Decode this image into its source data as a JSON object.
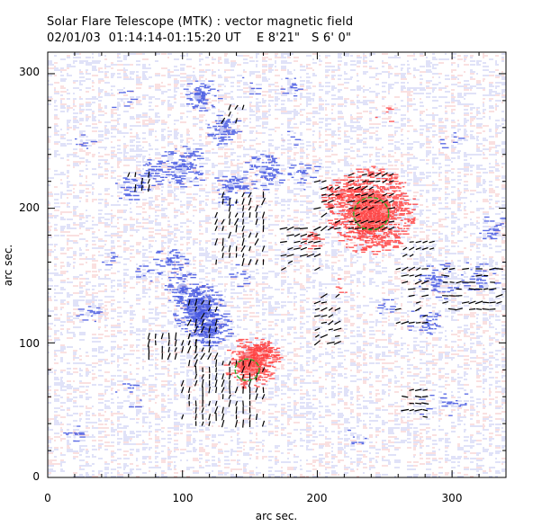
{
  "header": {
    "title": "Solar Flare Telescope (MTK) : vector magnetic field",
    "subtitle": "02/01/03  01:14:14-01:15:20 UT    E 8'21\"   S 6' 0\""
  },
  "axes": {
    "xlabel": "arc sec.",
    "ylabel": "arc sec.",
    "xlim": [
      0,
      340
    ],
    "ylim": [
      0,
      316
    ],
    "xticks": [
      "0",
      "100",
      "200",
      "300"
    ],
    "yticks": [
      "0",
      "100",
      "200",
      "300"
    ],
    "xtick_values": [
      0,
      100,
      200,
      300
    ],
    "ytick_values": [
      0,
      100,
      200,
      300
    ]
  },
  "magnetogram": {
    "positive_color": "#ff3b3b",
    "negative_color": "#3f52e0",
    "contour_color": "#22aa22",
    "vector_color": "#000000",
    "positive_spots": [
      {
        "x": 240,
        "y": 198,
        "r": 22,
        "strength": 1.0
      },
      {
        "x": 218,
        "y": 210,
        "r": 10,
        "strength": 0.6
      },
      {
        "x": 150,
        "y": 85,
        "r": 13,
        "strength": 1.0
      },
      {
        "x": 160,
        "y": 90,
        "r": 8,
        "strength": 0.7
      },
      {
        "x": 233,
        "y": 180,
        "r": 9,
        "strength": 0.5
      },
      {
        "x": 195,
        "y": 175,
        "r": 6,
        "strength": 0.35
      },
      {
        "x": 215,
        "y": 140,
        "r": 5,
        "strength": 0.25
      },
      {
        "x": 250,
        "y": 270,
        "r": 5,
        "strength": 0.2
      }
    ],
    "negative_spots": [
      {
        "x": 112,
        "y": 125,
        "r": 13,
        "strength": 1.0
      },
      {
        "x": 120,
        "y": 110,
        "r": 10,
        "strength": 0.9
      },
      {
        "x": 100,
        "y": 140,
        "r": 9,
        "strength": 0.7
      },
      {
        "x": 90,
        "y": 160,
        "r": 8,
        "strength": 0.55
      },
      {
        "x": 113,
        "y": 283,
        "r": 9,
        "strength": 0.7
      },
      {
        "x": 130,
        "y": 258,
        "r": 8,
        "strength": 0.6
      },
      {
        "x": 100,
        "y": 230,
        "r": 12,
        "strength": 0.5
      },
      {
        "x": 75,
        "y": 225,
        "r": 8,
        "strength": 0.45
      },
      {
        "x": 135,
        "y": 215,
        "r": 9,
        "strength": 0.55
      },
      {
        "x": 160,
        "y": 228,
        "r": 10,
        "strength": 0.45
      },
      {
        "x": 190,
        "y": 225,
        "r": 8,
        "strength": 0.4
      },
      {
        "x": 60,
        "y": 215,
        "r": 7,
        "strength": 0.4
      },
      {
        "x": 175,
        "y": 250,
        "r": 6,
        "strength": 0.3
      },
      {
        "x": 150,
        "y": 290,
        "r": 6,
        "strength": 0.3
      },
      {
        "x": 180,
        "y": 290,
        "r": 5,
        "strength": 0.35
      },
      {
        "x": 25,
        "y": 250,
        "r": 5,
        "strength": 0.35
      },
      {
        "x": 70,
        "y": 150,
        "r": 6,
        "strength": 0.3
      },
      {
        "x": 45,
        "y": 165,
        "r": 6,
        "strength": 0.3
      },
      {
        "x": 140,
        "y": 150,
        "r": 6,
        "strength": 0.3
      },
      {
        "x": 290,
        "y": 145,
        "r": 10,
        "strength": 0.4
      },
      {
        "x": 320,
        "y": 150,
        "r": 9,
        "strength": 0.4
      },
      {
        "x": 280,
        "y": 115,
        "r": 9,
        "strength": 0.35
      },
      {
        "x": 330,
        "y": 185,
        "r": 7,
        "strength": 0.4
      },
      {
        "x": 300,
        "y": 55,
        "r": 8,
        "strength": 0.35
      },
      {
        "x": 280,
        "y": 55,
        "r": 6,
        "strength": 0.3
      },
      {
        "x": 250,
        "y": 130,
        "r": 6,
        "strength": 0.3
      },
      {
        "x": 30,
        "y": 120,
        "r": 6,
        "strength": 0.25
      },
      {
        "x": 60,
        "y": 60,
        "r": 7,
        "strength": 0.25
      },
      {
        "x": 20,
        "y": 30,
        "r": 6,
        "strength": 0.25
      },
      {
        "x": 230,
        "y": 30,
        "r": 6,
        "strength": 0.2
      },
      {
        "x": 55,
        "y": 280,
        "r": 6,
        "strength": 0.25
      },
      {
        "x": 300,
        "y": 250,
        "r": 6,
        "strength": 0.2
      }
    ],
    "contours": [
      {
        "x": 240,
        "y": 196,
        "rx": 13,
        "ry": 12
      },
      {
        "x": 148,
        "y": 80,
        "rx": 9,
        "ry": 8
      }
    ],
    "vector_groups": [
      {
        "x0": 225,
        "x1": 255,
        "y0": 185,
        "y1": 225,
        "angle": 20
      },
      {
        "x0": 200,
        "x1": 215,
        "y0": 185,
        "y1": 220,
        "angle": 25
      },
      {
        "x0": 175,
        "x1": 200,
        "y0": 155,
        "y1": 185,
        "angle": 15
      },
      {
        "x0": 125,
        "x1": 160,
        "y0": 160,
        "y1": 210,
        "angle": 75
      },
      {
        "x0": 105,
        "x1": 125,
        "y0": 90,
        "y1": 130,
        "angle": 70
      },
      {
        "x0": 75,
        "x1": 110,
        "y0": 90,
        "y1": 105,
        "angle": 80
      },
      {
        "x0": 100,
        "x1": 160,
        "y0": 40,
        "y1": 85,
        "angle": 80
      },
      {
        "x0": 260,
        "x1": 280,
        "y0": 115,
        "y1": 155,
        "angle": 15
      },
      {
        "x0": 295,
        "x1": 335,
        "y0": 125,
        "y1": 155,
        "angle": 5
      },
      {
        "x0": 265,
        "x1": 280,
        "y0": 45,
        "y1": 65,
        "angle": 0
      },
      {
        "x0": 200,
        "x1": 215,
        "y0": 100,
        "y1": 135,
        "angle": 25
      },
      {
        "x0": 60,
        "x1": 75,
        "y0": 215,
        "y1": 230,
        "angle": 70
      },
      {
        "x0": 265,
        "x1": 285,
        "y0": 165,
        "y1": 175,
        "angle": 20
      },
      {
        "x0": 130,
        "x1": 145,
        "y0": 265,
        "y1": 275,
        "angle": 60
      }
    ]
  }
}
